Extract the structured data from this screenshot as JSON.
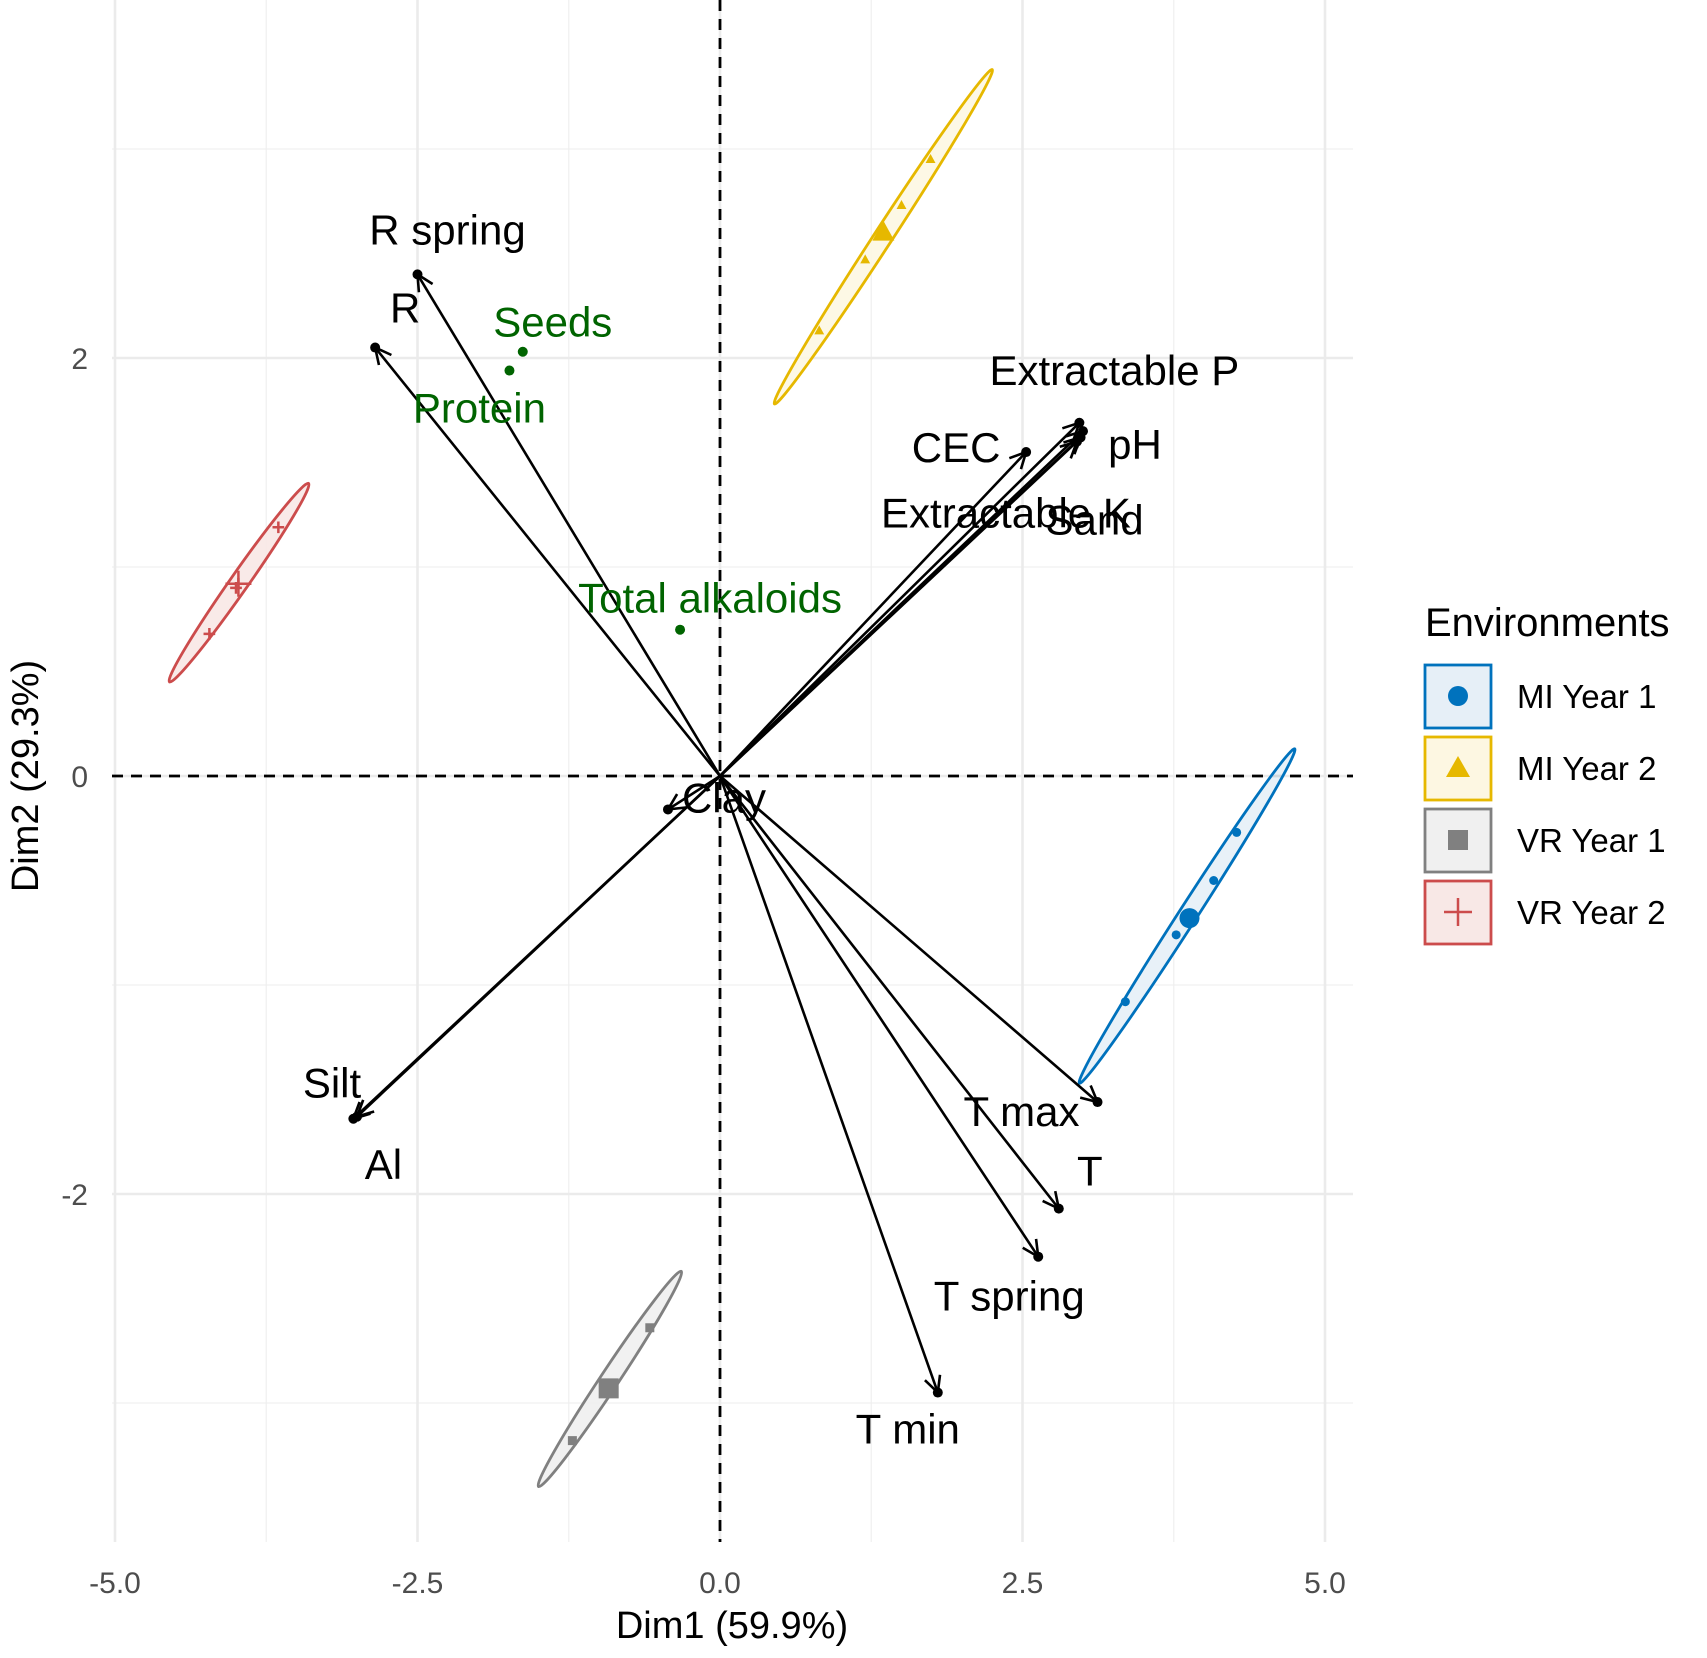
{
  "chart_data": {
    "type": "scatter",
    "subtype": "pca-biplot",
    "xlabel": "Dim1 (59.9%)",
    "ylabel": "Dim2 (29.3%)",
    "xlim": [
      -5,
      5
    ],
    "ylim": [
      -3.5,
      3.5
    ],
    "x_ticks": [
      -5,
      -2.5,
      0,
      2.5,
      5
    ],
    "x_tick_labels": [
      "-5.0",
      "-2.5",
      "0.0",
      "2.5",
      "5.0"
    ],
    "y_ticks": [
      2,
      0,
      -2
    ],
    "y_tick_labels": [
      "2",
      "0",
      "-2"
    ],
    "grid": true,
    "reference_lines": {
      "x": 0,
      "y": 0,
      "style": "dashed"
    },
    "legend": {
      "title": "Environments",
      "position": "right",
      "entries": [
        {
          "label": "MI Year 1",
          "color": "#0072BD",
          "fill": "#E6EFF7",
          "shape": "circle"
        },
        {
          "label": "MI Year 2",
          "color": "#E6B800",
          "fill": "#FDF7E2",
          "shape": "triangle"
        },
        {
          "label": "VR Year 1",
          "color": "#808080",
          "fill": "#F0F0F0",
          "shape": "square"
        },
        {
          "label": "VR Year 2",
          "color": "#CC4C4C",
          "fill": "#F8E8E6",
          "shape": "cross"
        }
      ]
    },
    "environment_vectors": [
      {
        "name": "R spring",
        "x": -2.5,
        "y": 2.4
      },
      {
        "name": "R",
        "x": -2.85,
        "y": 2.05
      },
      {
        "name": "Extractable P",
        "x": 2.97,
        "y": 1.69
      },
      {
        "name": "pH",
        "x": 3.0,
        "y": 1.65
      },
      {
        "name": "Sand",
        "x": 2.98,
        "y": 1.62
      },
      {
        "name": "Extractable K",
        "x": 2.95,
        "y": 1.6
      },
      {
        "name": "CEC",
        "x": 2.53,
        "y": 1.55
      },
      {
        "name": "Clay",
        "x": -0.43,
        "y": -0.16
      },
      {
        "name": "Silt",
        "x": -3.0,
        "y": -1.63
      },
      {
        "name": "Al",
        "x": -3.03,
        "y": -1.64
      },
      {
        "name": "T max",
        "x": 3.12,
        "y": -1.56
      },
      {
        "name": "T",
        "x": 2.8,
        "y": -2.07
      },
      {
        "name": "T spring",
        "x": 2.63,
        "y": -2.3
      },
      {
        "name": "T min",
        "x": 1.8,
        "y": -2.95
      }
    ],
    "trait_points": [
      {
        "name": "Seeds",
        "x": -1.63,
        "y": 2.03
      },
      {
        "name": "Protein",
        "x": -1.74,
        "y": 1.94
      },
      {
        "name": "Total alkaloids",
        "x": -0.33,
        "y": 0.7
      }
    ],
    "groups": [
      {
        "name": "MI Year 1",
        "color": "#0072BD",
        "centroid": {
          "x": 3.88,
          "y": -0.68
        },
        "points": [
          [
            3.35,
            -1.08
          ],
          [
            3.77,
            -0.76
          ],
          [
            3.87,
            -0.68
          ],
          [
            4.08,
            -0.5
          ],
          [
            4.27,
            -0.27
          ]
        ],
        "ellipse_ends": [
          [
            2.97,
            -1.47
          ],
          [
            4.75,
            0.13
          ]
        ]
      },
      {
        "name": "MI Year 2",
        "color": "#E6B800",
        "centroid": {
          "x": 1.35,
          "y": 2.6
        },
        "points": [
          [
            0.82,
            2.13
          ],
          [
            1.2,
            2.47
          ],
          [
            1.35,
            2.6
          ],
          [
            1.5,
            2.73
          ],
          [
            1.74,
            2.95
          ]
        ],
        "ellipse_ends": [
          [
            0.45,
            1.78
          ],
          [
            2.25,
            3.38
          ]
        ]
      },
      {
        "name": "VR Year 1",
        "color": "#808080",
        "centroid": {
          "x": -0.92,
          "y": -2.93
        },
        "points": [
          [
            -1.22,
            -3.18
          ],
          [
            -0.92,
            -2.93
          ],
          [
            -0.58,
            -2.64
          ]
        ],
        "ellipse_ends": [
          [
            -1.5,
            -3.4
          ],
          [
            -0.32,
            -2.37
          ]
        ]
      },
      {
        "name": "VR Year 2",
        "color": "#CC4C4C",
        "centroid": {
          "x": -3.98,
          "y": 0.92
        },
        "points": [
          [
            -4.22,
            0.68
          ],
          [
            -4.0,
            0.9
          ],
          [
            -3.98,
            0.92
          ],
          [
            -3.65,
            1.19
          ]
        ],
        "ellipse_ends": [
          [
            -4.55,
            0.45
          ],
          [
            -3.4,
            1.4
          ]
        ]
      }
    ],
    "label_colors": {
      "variables": "#000000",
      "traits": "#006400"
    }
  }
}
